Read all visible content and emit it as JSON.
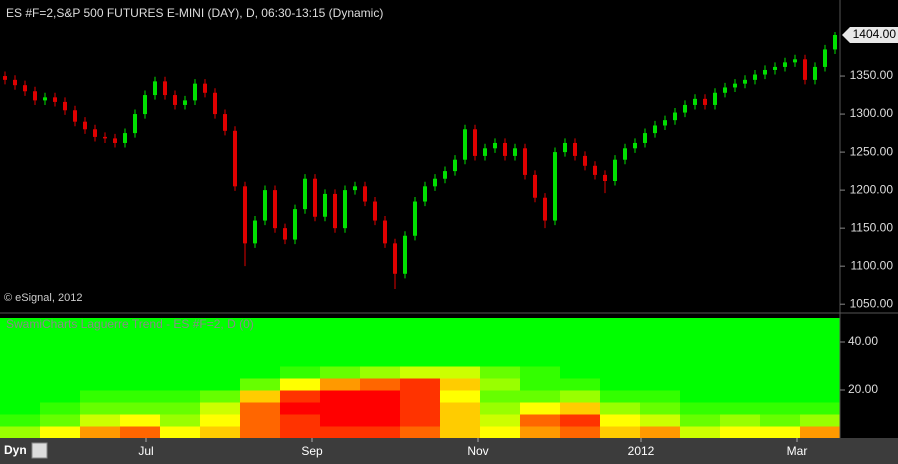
{
  "chart_data": [
    {
      "type": "candlestick",
      "title": "ES #F=2,S&P 500 FUTURES E-MINI (DAY), D, 06:30-13:15 (Dynamic)",
      "up_color": "#00e000",
      "down_color": "#e00000",
      "xlim": [
        -0.5,
        83.5
      ],
      "xticks": [
        {
          "value": 14.1,
          "label": "Jul"
        },
        {
          "value": 30.7,
          "label": "Sep"
        },
        {
          "value": 47.3,
          "label": "Nov"
        },
        {
          "value": 63.6,
          "label": "2012"
        },
        {
          "value": 79.2,
          "label": "Mar"
        }
      ],
      "ylim": [
        1045,
        1450
      ],
      "yticks": [
        {
          "value": 1050,
          "label": "1050.00"
        },
        {
          "value": 1100,
          "label": "1100.00"
        },
        {
          "value": 1150,
          "label": "1150.00"
        },
        {
          "value": 1200,
          "label": "1200.00"
        },
        {
          "value": 1250,
          "label": "1250.00"
        },
        {
          "value": 1300,
          "label": "1300.00"
        },
        {
          "value": 1350,
          "label": "1350.00"
        }
      ],
      "price_marker": {
        "value": 1404,
        "label": "1404.00"
      },
      "open": [
        1350,
        1345,
        1338,
        1330,
        1318,
        1322,
        1316,
        1305,
        1290,
        1280,
        1270,
        1268,
        1262,
        1275,
        1300,
        1325,
        1343,
        1325,
        1312,
        1318,
        1340,
        1328,
        1300,
        1278,
        1205,
        1130,
        1160,
        1200,
        1150,
        1135,
        1175,
        1215,
        1165,
        1195,
        1150,
        1200,
        1205,
        1185,
        1160,
        1130,
        1090,
        1140,
        1185,
        1205,
        1215,
        1225,
        1240,
        1280,
        1245,
        1255,
        1262,
        1245,
        1255,
        1220,
        1190,
        1160,
        1250,
        1262,
        1245,
        1232,
        1220,
        1212,
        1240,
        1255,
        1262,
        1275,
        1285,
        1292,
        1302,
        1312,
        1320,
        1312,
        1328,
        1335,
        1340,
        1345,
        1352,
        1358,
        1362,
        1368,
        1372,
        1345,
        1362,
        1385
      ],
      "high": [
        1356,
        1351,
        1344,
        1336,
        1328,
        1328,
        1322,
        1311,
        1296,
        1286,
        1276,
        1274,
        1281,
        1306,
        1331,
        1349,
        1349,
        1331,
        1324,
        1346,
        1346,
        1334,
        1306,
        1284,
        1211,
        1166,
        1206,
        1206,
        1156,
        1181,
        1221,
        1221,
        1201,
        1201,
        1206,
        1211,
        1211,
        1191,
        1166,
        1136,
        1146,
        1191,
        1211,
        1221,
        1231,
        1246,
        1286,
        1286,
        1261,
        1268,
        1268,
        1261,
        1261,
        1226,
        1196,
        1256,
        1268,
        1268,
        1251,
        1238,
        1226,
        1246,
        1261,
        1268,
        1281,
        1291,
        1298,
        1308,
        1318,
        1326,
        1326,
        1334,
        1341,
        1346,
        1351,
        1358,
        1364,
        1368,
        1374,
        1378,
        1378,
        1368,
        1391,
        1408
      ],
      "low": [
        1339,
        1332,
        1324,
        1312,
        1312,
        1310,
        1299,
        1284,
        1274,
        1264,
        1262,
        1256,
        1256,
        1269,
        1294,
        1319,
        1319,
        1306,
        1306,
        1312,
        1322,
        1294,
        1272,
        1199,
        1100,
        1124,
        1154,
        1144,
        1129,
        1129,
        1169,
        1159,
        1159,
        1144,
        1144,
        1194,
        1179,
        1154,
        1124,
        1070,
        1084,
        1134,
        1179,
        1199,
        1209,
        1219,
        1234,
        1239,
        1239,
        1249,
        1239,
        1239,
        1214,
        1184,
        1150,
        1154,
        1244,
        1239,
        1226,
        1214,
        1196,
        1206,
        1234,
        1249,
        1256,
        1269,
        1279,
        1286,
        1296,
        1306,
        1306,
        1306,
        1322,
        1329,
        1334,
        1339,
        1346,
        1352,
        1356,
        1362,
        1339,
        1339,
        1356,
        1379
      ],
      "close": [
        1345,
        1338,
        1330,
        1318,
        1322,
        1316,
        1305,
        1290,
        1280,
        1270,
        1268,
        1262,
        1275,
        1300,
        1325,
        1343,
        1325,
        1312,
        1318,
        1340,
        1328,
        1300,
        1278,
        1205,
        1130,
        1160,
        1200,
        1150,
        1135,
        1175,
        1215,
        1165,
        1195,
        1150,
        1200,
        1205,
        1185,
        1160,
        1130,
        1090,
        1140,
        1185,
        1205,
        1215,
        1225,
        1240,
        1280,
        1245,
        1255,
        1262,
        1245,
        1255,
        1220,
        1190,
        1160,
        1250,
        1262,
        1245,
        1232,
        1220,
        1212,
        1240,
        1255,
        1262,
        1275,
        1285,
        1292,
        1302,
        1312,
        1320,
        1312,
        1328,
        1335,
        1340,
        1345,
        1352,
        1358,
        1362,
        1368,
        1372,
        1345,
        1362,
        1385,
        1404
      ]
    },
    {
      "type": "heatmap",
      "title": "SwamiCharts Laguerre Trend - ES #F=2, D (0)",
      "colorscale": [
        "#00ff00",
        "#ffff00",
        "#ff0000"
      ],
      "xlim": [
        -0.5,
        83.5
      ],
      "ylim": [
        0,
        50
      ],
      "yticks": [
        {
          "value": 20,
          "label": "20.00"
        },
        {
          "value": 40,
          "label": "40.00"
        }
      ],
      "y_bins": [
        0,
        5,
        10,
        15,
        20,
        25,
        30,
        35,
        40,
        45,
        50
      ],
      "z": [
        [
          0.3,
          0.5,
          0.7,
          0.8,
          0.5,
          0.6,
          0.8,
          0.9,
          0.9,
          0.9,
          0.8,
          0.6,
          0.5,
          0.7,
          0.8,
          0.6,
          0.7,
          0.4,
          0.5,
          0.5,
          0.7
        ],
        [
          0.1,
          0.2,
          0.4,
          0.5,
          0.3,
          0.5,
          0.8,
          0.9,
          1,
          1,
          0.9,
          0.6,
          0.4,
          0.8,
          0.9,
          0.5,
          0.4,
          0.2,
          0.3,
          0.2,
          0.3
        ],
        [
          0,
          0.1,
          0.2,
          0.2,
          0.2,
          0.4,
          0.8,
          1,
          1,
          1,
          0.9,
          0.6,
          0.3,
          0.5,
          0.6,
          0.3,
          0.2,
          0.1,
          0.1,
          0.1,
          0.1
        ],
        [
          0,
          0,
          0.1,
          0.1,
          0.1,
          0.2,
          0.6,
          0.9,
          1,
          1,
          0.9,
          0.5,
          0.2,
          0.2,
          0.3,
          0.1,
          0.1,
          0,
          0,
          0,
          0
        ],
        [
          0,
          0,
          0,
          0,
          0,
          0,
          0.2,
          0.5,
          0.7,
          0.8,
          0.9,
          0.6,
          0.3,
          0.1,
          0.1,
          0,
          0,
          0,
          0,
          0,
          0
        ],
        [
          0,
          0,
          0,
          0,
          0,
          0,
          0,
          0.1,
          0.2,
          0.3,
          0.4,
          0.4,
          0.2,
          0.1,
          0,
          0,
          0,
          0,
          0,
          0,
          0
        ],
        [
          0,
          0,
          0,
          0,
          0,
          0,
          0,
          0,
          0,
          0,
          0,
          0,
          0,
          0,
          0,
          0,
          0,
          0,
          0,
          0,
          0
        ],
        [
          0,
          0,
          0,
          0,
          0,
          0,
          0,
          0,
          0,
          0,
          0,
          0,
          0,
          0,
          0,
          0,
          0,
          0,
          0,
          0,
          0
        ],
        [
          0,
          0,
          0,
          0,
          0,
          0,
          0,
          0,
          0,
          0,
          0,
          0,
          0,
          0,
          0,
          0,
          0,
          0,
          0,
          0,
          0
        ],
        [
          0,
          0,
          0,
          0,
          0,
          0,
          0,
          0,
          0,
          0,
          0,
          0,
          0,
          0,
          0,
          0,
          0,
          0,
          0,
          0,
          0
        ]
      ]
    }
  ],
  "ui": {
    "copyright": "© eSignal, 2012",
    "mode": "Dyn"
  }
}
